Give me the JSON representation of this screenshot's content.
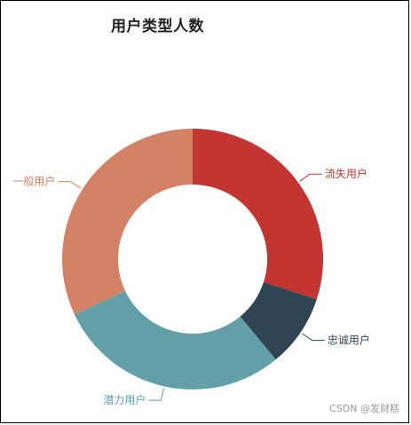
{
  "chart_data": {
    "type": "pie",
    "title": "用户类型人数",
    "categories": [
      "流失用户",
      "忠诚用户",
      "潜力用户",
      "一般用户"
    ],
    "values": [
      30,
      9,
      29,
      32
    ],
    "colors": [
      "#c23531",
      "#2f4554",
      "#61a0a8",
      "#d48265"
    ],
    "donut": true,
    "legend": "none"
  },
  "watermark": "CSDN @发财糕"
}
